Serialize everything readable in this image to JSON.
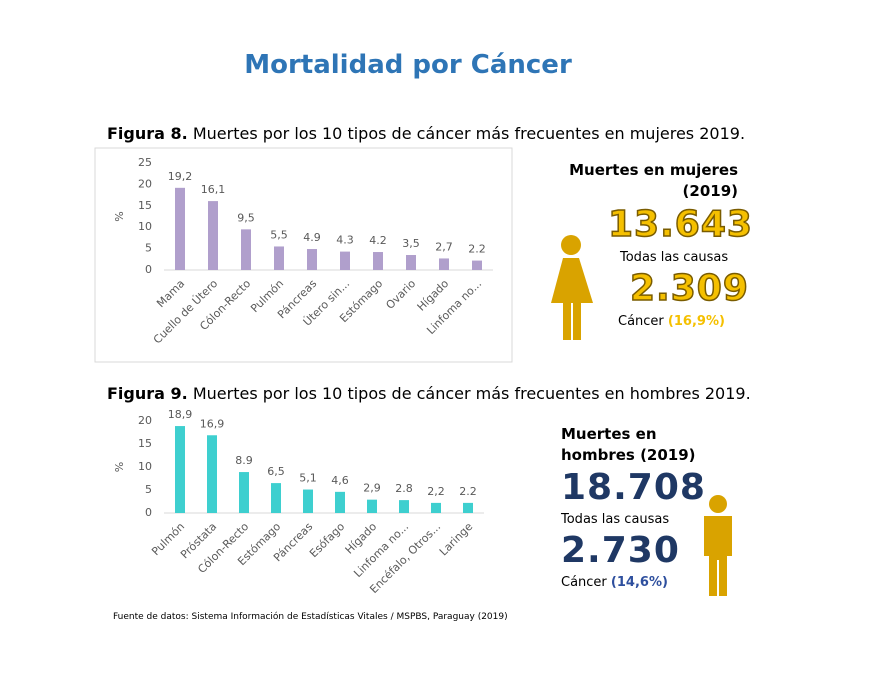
{
  "title": "Mortalidad por Cáncer",
  "figures": [
    {
      "label": "Figura 8.",
      "caption": "Muertes por los 10 tipos de cáncer más frecuentes en mujeres 2019."
    },
    {
      "label": "Figura 9.",
      "caption": "Muertes por los 10 tipos de cáncer más frecuentes en hombres 2019."
    }
  ],
  "chart_data": [
    {
      "type": "bar",
      "ylabel": "%",
      "color": "#b09fcc",
      "categories": [
        "Mama",
        "Cuello de Útero",
        "Cólon-Recto",
        "Pulmón",
        "Páncreas",
        "Útero sin...",
        "Estómago",
        "Ovario",
        "Hígado",
        "Linfoma no..."
      ],
      "values": [
        19.2,
        16.1,
        9.5,
        5.5,
        4.9,
        4.3,
        4.2,
        3.5,
        2.7,
        2.2
      ],
      "value_labels": [
        "19,2",
        "16,1",
        "9,5",
        "5,5",
        "4.9",
        "4.3",
        "4.2",
        "3,5",
        "2,7",
        "2.2"
      ],
      "ylim": [
        0,
        25
      ],
      "yticks": [
        0,
        5,
        10,
        15,
        20,
        25
      ]
    },
    {
      "type": "bar",
      "ylabel": "%",
      "color": "#3ecfcf",
      "categories": [
        "Pulmón",
        "Próstata",
        "Cólon-Recto",
        "Estómago",
        "Páncreas",
        "Esófago",
        "Hígado",
        "Linfoma no...",
        "Encéfalo, Otros...",
        "Laringe"
      ],
      "values": [
        18.9,
        16.9,
        8.9,
        6.5,
        5.1,
        4.6,
        2.9,
        2.8,
        2.2,
        2.2
      ],
      "value_labels": [
        "18,9",
        "16,9",
        "8.9",
        "6,5",
        "5,1",
        "4,6",
        "2,9",
        "2.8",
        "2,2",
        "2.2"
      ],
      "ylim": [
        0,
        20
      ],
      "yticks": [
        0,
        5,
        10,
        15,
        20
      ]
    }
  ],
  "infographics": [
    {
      "heading": "Muertes en mujeres",
      "year": "(2019)",
      "total": "13.643",
      "total_label": "Todas las causas",
      "cancer": "2.309",
      "cancer_label": "Cáncer",
      "cancer_pct": "(16,9%)"
    },
    {
      "heading": "Muertes en",
      "year": "hombres (2019)",
      "total": "18.708",
      "total_label": "Todas las causas",
      "cancer": "2.730",
      "cancer_label": "Cáncer",
      "cancer_pct": "(14,6%)"
    }
  ],
  "source": "Fuente de datos: Sistema Información de Estadísticas Vitales / MSPBS, Paraguay (2019)"
}
